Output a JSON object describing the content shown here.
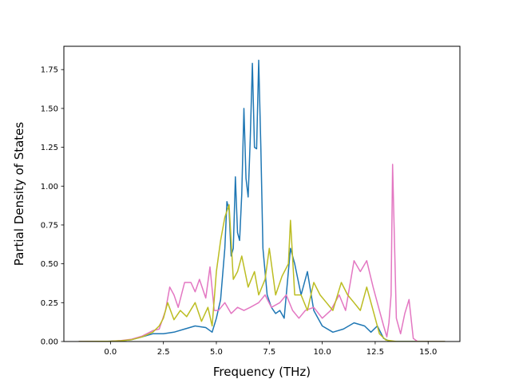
{
  "chart_data": {
    "type": "line",
    "title": "",
    "xlabel": "Frequency (THz)",
    "ylabel": "Partial Density of States",
    "xlim": [
      -2.2,
      16.5
    ],
    "ylim": [
      0,
      1.9
    ],
    "grid": false,
    "legend": "none",
    "xticks": [
      {
        "value": 0,
        "label": "0.0"
      },
      {
        "value": 2.5,
        "label": "2.5"
      },
      {
        "value": 5,
        "label": "5.0"
      },
      {
        "value": 7.5,
        "label": "7.5"
      },
      {
        "value": 10,
        "label": "10.0"
      },
      {
        "value": 12.5,
        "label": "12.5"
      },
      {
        "value": 15,
        "label": "15.0"
      }
    ],
    "yticks": [
      {
        "value": 0,
        "label": "0.00"
      },
      {
        "value": 0.25,
        "label": "0.25"
      },
      {
        "value": 0.5,
        "label": "0.50"
      },
      {
        "value": 0.75,
        "label": "0.75"
      },
      {
        "value": 1.0,
        "label": "1.00"
      },
      {
        "value": 1.25,
        "label": "1.25"
      },
      {
        "value": 1.5,
        "label": "1.50"
      },
      {
        "value": 1.75,
        "label": "1.75"
      }
    ],
    "series": [
      {
        "color": "#1f77b4",
        "points": [
          [
            -1.5,
            0
          ],
          [
            -0.5,
            0
          ],
          [
            0,
            0.002
          ],
          [
            0.5,
            0.005
          ],
          [
            1,
            0.012
          ],
          [
            1.5,
            0.03
          ],
          [
            2,
            0.05
          ],
          [
            2.5,
            0.05
          ],
          [
            3,
            0.06
          ],
          [
            3.5,
            0.08
          ],
          [
            4,
            0.1
          ],
          [
            4.5,
            0.09
          ],
          [
            4.8,
            0.06
          ],
          [
            5,
            0.15
          ],
          [
            5.2,
            0.27
          ],
          [
            5.4,
            0.6
          ],
          [
            5.5,
            0.9
          ],
          [
            5.6,
            0.85
          ],
          [
            5.7,
            0.55
          ],
          [
            5.8,
            0.6
          ],
          [
            5.9,
            1.06
          ],
          [
            6,
            0.7
          ],
          [
            6.1,
            0.65
          ],
          [
            6.2,
            0.95
          ],
          [
            6.3,
            1.5
          ],
          [
            6.4,
            1.05
          ],
          [
            6.5,
            0.93
          ],
          [
            6.6,
            1.3
          ],
          [
            6.7,
            1.79
          ],
          [
            6.8,
            1.25
          ],
          [
            6.9,
            1.24
          ],
          [
            7.0,
            1.81
          ],
          [
            7.1,
            1.25
          ],
          [
            7.2,
            0.6
          ],
          [
            7.4,
            0.3
          ],
          [
            7.6,
            0.22
          ],
          [
            7.8,
            0.18
          ],
          [
            8.0,
            0.2
          ],
          [
            8.2,
            0.15
          ],
          [
            8.5,
            0.6
          ],
          [
            8.7,
            0.5
          ],
          [
            9.0,
            0.3
          ],
          [
            9.3,
            0.45
          ],
          [
            9.6,
            0.2
          ],
          [
            10.0,
            0.1
          ],
          [
            10.5,
            0.06
          ],
          [
            11,
            0.08
          ],
          [
            11.5,
            0.12
          ],
          [
            12,
            0.1
          ],
          [
            12.3,
            0.06
          ],
          [
            12.6,
            0.1
          ],
          [
            12.9,
            0.02
          ],
          [
            13.2,
            0
          ],
          [
            14,
            0
          ],
          [
            15.8,
            0
          ]
        ]
      },
      {
        "color": "#e377c2",
        "points": [
          [
            -1.5,
            0
          ],
          [
            0,
            0.002
          ],
          [
            0.5,
            0.006
          ],
          [
            1,
            0.015
          ],
          [
            1.5,
            0.035
          ],
          [
            2,
            0.07
          ],
          [
            2.3,
            0.08
          ],
          [
            2.6,
            0.2
          ],
          [
            2.8,
            0.35
          ],
          [
            3,
            0.3
          ],
          [
            3.2,
            0.22
          ],
          [
            3.5,
            0.38
          ],
          [
            3.8,
            0.38
          ],
          [
            4.0,
            0.32
          ],
          [
            4.2,
            0.4
          ],
          [
            4.5,
            0.28
          ],
          [
            4.7,
            0.48
          ],
          [
            4.9,
            0.2
          ],
          [
            5.1,
            0.2
          ],
          [
            5.4,
            0.25
          ],
          [
            5.7,
            0.18
          ],
          [
            6.0,
            0.22
          ],
          [
            6.3,
            0.2
          ],
          [
            6.6,
            0.22
          ],
          [
            7.0,
            0.25
          ],
          [
            7.3,
            0.3
          ],
          [
            7.6,
            0.22
          ],
          [
            8.0,
            0.25
          ],
          [
            8.3,
            0.3
          ],
          [
            8.6,
            0.2
          ],
          [
            8.9,
            0.15
          ],
          [
            9.2,
            0.2
          ],
          [
            9.6,
            0.22
          ],
          [
            10.0,
            0.15
          ],
          [
            10.4,
            0.2
          ],
          [
            10.8,
            0.3
          ],
          [
            11.1,
            0.2
          ],
          [
            11.5,
            0.52
          ],
          [
            11.8,
            0.45
          ],
          [
            12.1,
            0.52
          ],
          [
            12.4,
            0.35
          ],
          [
            12.7,
            0.2
          ],
          [
            12.9,
            0.1
          ],
          [
            13.05,
            0.03
          ],
          [
            13.15,
            0.12
          ],
          [
            13.25,
            0.3
          ],
          [
            13.32,
            1.14
          ],
          [
            13.4,
            0.7
          ],
          [
            13.5,
            0.15
          ],
          [
            13.7,
            0.05
          ],
          [
            13.9,
            0.18
          ],
          [
            14.1,
            0.27
          ],
          [
            14.3,
            0.02
          ],
          [
            14.5,
            0
          ],
          [
            15.8,
            0
          ]
        ]
      },
      {
        "color": "#bcbd22",
        "points": [
          [
            -1.5,
            0
          ],
          [
            0,
            0.002
          ],
          [
            0.5,
            0.005
          ],
          [
            1,
            0.012
          ],
          [
            1.5,
            0.03
          ],
          [
            2,
            0.06
          ],
          [
            2.3,
            0.1
          ],
          [
            2.5,
            0.15
          ],
          [
            2.7,
            0.25
          ],
          [
            3,
            0.14
          ],
          [
            3.3,
            0.2
          ],
          [
            3.6,
            0.16
          ],
          [
            4,
            0.25
          ],
          [
            4.3,
            0.13
          ],
          [
            4.6,
            0.22
          ],
          [
            4.8,
            0.1
          ],
          [
            5.0,
            0.45
          ],
          [
            5.2,
            0.65
          ],
          [
            5.4,
            0.8
          ],
          [
            5.6,
            0.88
          ],
          [
            5.8,
            0.4
          ],
          [
            6.0,
            0.45
          ],
          [
            6.2,
            0.55
          ],
          [
            6.5,
            0.35
          ],
          [
            6.8,
            0.45
          ],
          [
            7.0,
            0.3
          ],
          [
            7.3,
            0.4
          ],
          [
            7.5,
            0.6
          ],
          [
            7.8,
            0.3
          ],
          [
            8.1,
            0.42
          ],
          [
            8.4,
            0.5
          ],
          [
            8.5,
            0.78
          ],
          [
            8.7,
            0.3
          ],
          [
            9.0,
            0.3
          ],
          [
            9.3,
            0.2
          ],
          [
            9.6,
            0.38
          ],
          [
            9.9,
            0.3
          ],
          [
            10.2,
            0.25
          ],
          [
            10.5,
            0.2
          ],
          [
            10.9,
            0.38
          ],
          [
            11.2,
            0.3
          ],
          [
            11.5,
            0.25
          ],
          [
            11.8,
            0.2
          ],
          [
            12.1,
            0.35
          ],
          [
            12.4,
            0.2
          ],
          [
            12.7,
            0.05
          ],
          [
            13.0,
            0.01
          ],
          [
            13.5,
            0
          ],
          [
            15.8,
            0
          ]
        ]
      }
    ]
  }
}
